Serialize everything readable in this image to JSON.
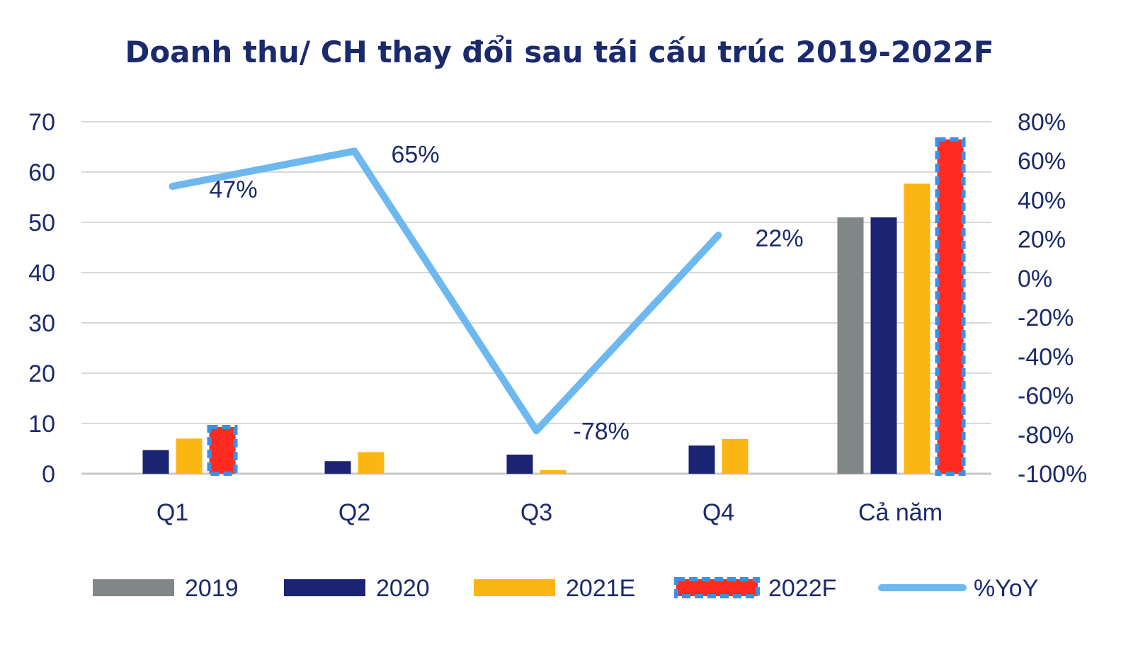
{
  "chart_data": {
    "type": "bar",
    "title": "Doanh thu/ CH thay đổi sau tái cấu trúc 2019-2022F",
    "categories": [
      "Q1",
      "Q2",
      "Q3",
      "Q4",
      "Cả năm"
    ],
    "y_left": {
      "ticks": [
        "0",
        "10",
        "20",
        "30",
        "40",
        "50",
        "60",
        "70"
      ],
      "range": [
        0,
        70
      ]
    },
    "y_right": {
      "ticks": [
        "-100%",
        "-80%",
        "-60%",
        "-40%",
        "-20%",
        "0%",
        "20%",
        "40%",
        "60%",
        "80%"
      ],
      "range": [
        -100,
        80
      ]
    },
    "grid": true,
    "legend_position": "bottom",
    "series": [
      {
        "name": "2019",
        "kind": "bar",
        "axis": "left",
        "color": "#808787",
        "values": [
          null,
          null,
          null,
          null,
          51
        ]
      },
      {
        "name": "2020",
        "kind": "bar",
        "axis": "left",
        "color": "#1b2472",
        "values": [
          4.7,
          2.5,
          3.8,
          5.6,
          51
        ]
      },
      {
        "name": "2021E",
        "kind": "bar",
        "axis": "left",
        "color": "#fbb613",
        "values": [
          7,
          4.3,
          0.7,
          6.9,
          57.7
        ]
      },
      {
        "name": "2022F",
        "kind": "bar",
        "axis": "left",
        "color": "#ff2b20",
        "border_color": "#3d8fe6",
        "values": [
          9.3,
          null,
          null,
          null,
          66.5
        ]
      },
      {
        "name": "%YoY",
        "kind": "line",
        "axis": "right",
        "color": "#6cb8ef",
        "values": [
          47,
          65,
          -78,
          22,
          null
        ],
        "labels": [
          "47%",
          "65%",
          "-78%",
          "22%",
          ""
        ]
      }
    ]
  }
}
